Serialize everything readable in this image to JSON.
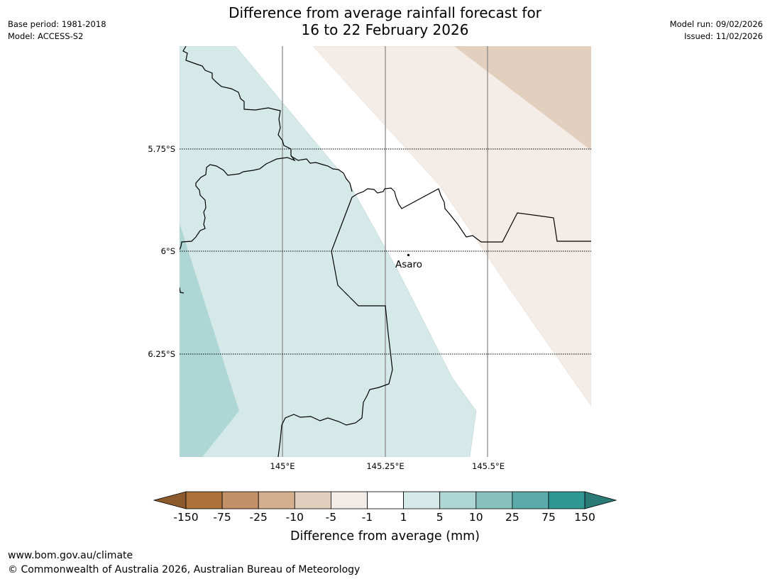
{
  "header": {
    "title_line1": "Difference from average rainfall forecast for",
    "title_line2": "16 to 22 February 2026",
    "base_period": "Base period: 1981-2018",
    "model": "Model: ACCESS-S2",
    "model_run": "Model run: 09/02/2026",
    "issued": "Issued: 11/02/2026"
  },
  "map": {
    "lat_labels": [
      "5.75°S",
      "6°S",
      "6.25°S"
    ],
    "lon_labels": [
      "145°E",
      "145.25°E",
      "145.5°E"
    ],
    "place_name": "Asaro"
  },
  "colorbar": {
    "title": "Difference from average (mm)",
    "ticks": [
      "-150",
      "-75",
      "-25",
      "-10",
      "-5",
      "-1",
      "1",
      "5",
      "10",
      "25",
      "75",
      "150"
    ],
    "low_extend_color": "#8c5a2c",
    "high_extend_color": "#2a7b77",
    "colors": [
      "#ac723a",
      "#c29168",
      "#d4af8e",
      "#e3cfbd",
      "#f4ede7",
      "#ffffff",
      "#d5e9e8",
      "#add6d5",
      "#86c1be",
      "#5aaba9",
      "#2f9893"
    ]
  },
  "footer": {
    "url": "www.bom.gov.au/climate",
    "copyright": "© Commonwealth of Australia 2026, Australian Bureau of Meteorology"
  }
}
